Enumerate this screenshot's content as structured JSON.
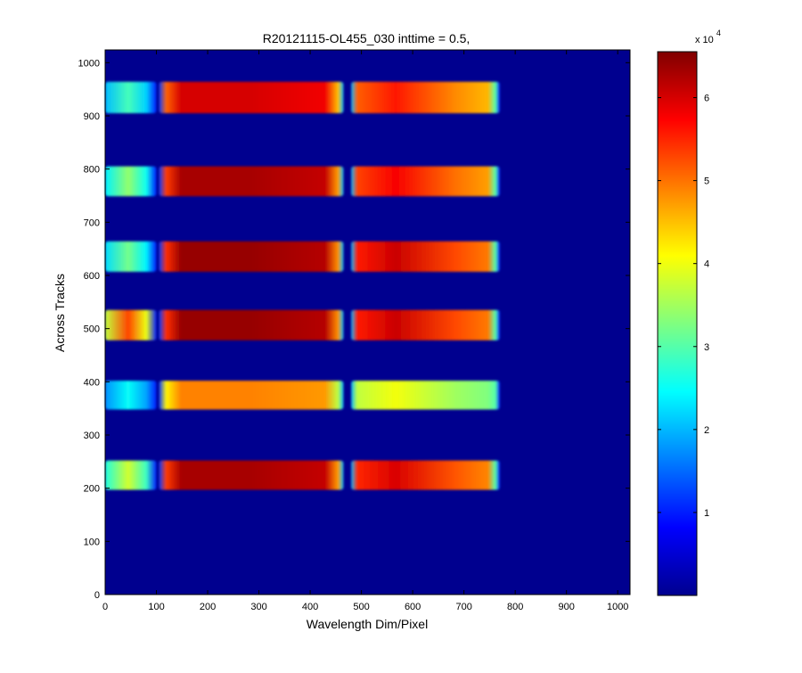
{
  "chart_data": {
    "type": "heatmap",
    "title": "R20121115-OL455_030 inttime = 0.5,",
    "xlabel": "Wavelength Dim/Pixel",
    "ylabel": "Across Tracks",
    "xlim": [
      0,
      1024
    ],
    "ylim": [
      0,
      1024
    ],
    "x_ticks": [
      0,
      100,
      200,
      300,
      400,
      500,
      600,
      700,
      800,
      900,
      1000
    ],
    "y_ticks": [
      0,
      100,
      200,
      300,
      400,
      500,
      600,
      700,
      800,
      900,
      1000
    ],
    "background_value": 0,
    "colormap": "jet",
    "colorbar": {
      "min": 0,
      "max": 65535,
      "ticks": [
        1,
        2,
        3,
        4,
        5,
        6
      ],
      "multiplier_label": "x 10",
      "multiplier_exponent": "4",
      "tick_scale": 10000
    },
    "tracks": [
      {
        "y_min": 197,
        "y_max": 252,
        "peak_a": 6.3,
        "peak_b": 6.1,
        "edge": 3.8
      },
      {
        "y_min": 348,
        "y_max": 402,
        "peak_a": 4.9,
        "peak_b": 4.1,
        "edge": 2.5
      },
      {
        "y_min": 478,
        "y_max": 535,
        "peak_a": 6.4,
        "peak_b": 6.2,
        "edge": 5.3
      },
      {
        "y_min": 607,
        "y_max": 664,
        "peak_a": 6.4,
        "peak_b": 6.2,
        "edge": 3.2
      },
      {
        "y_min": 749,
        "y_max": 805,
        "peak_a": 6.3,
        "peak_b": 5.9,
        "edge": 3.4
      },
      {
        "y_min": 905,
        "y_max": 964,
        "peak_a": 6.0,
        "peak_b": 5.7,
        "edge": 2.9
      }
    ],
    "track_x_ranges": {
      "left_lobe": [
        0,
        100
      ],
      "segment_a": [
        105,
        465
      ],
      "segment_b": [
        480,
        770
      ]
    }
  }
}
